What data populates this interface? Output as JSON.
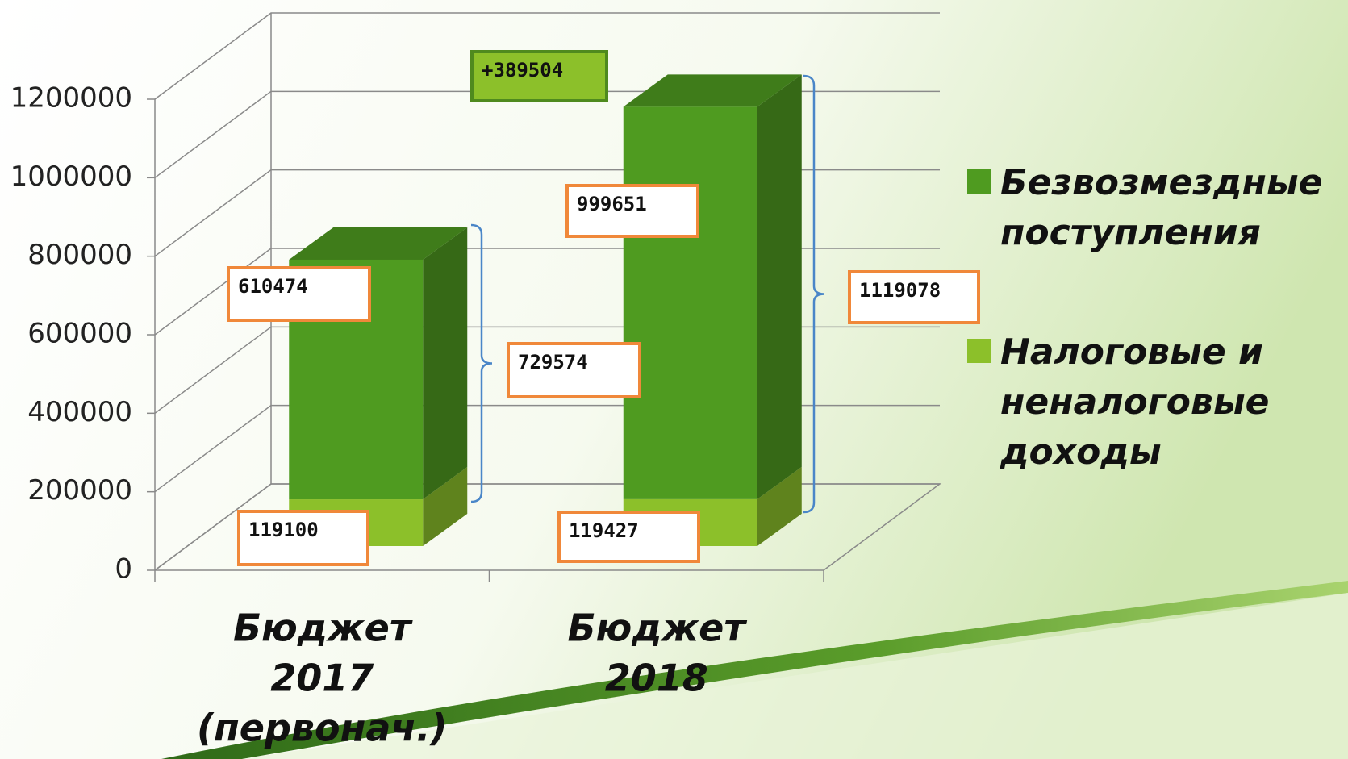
{
  "chart_data": {
    "type": "bar3d_stacked",
    "categories": [
      [
        "Бюджет",
        "2017",
        "(первонач.)"
      ],
      [
        "Бюджет",
        "2018"
      ]
    ],
    "series": [
      {
        "name": "Налоговые и неналоговые доходы",
        "color": "#8cc02a",
        "values": [
          119100,
          119427
        ]
      },
      {
        "name": "Безвозмездные поступления",
        "color": "#4f9b20",
        "values": [
          610474,
          999651
        ]
      }
    ],
    "totals": [
      729574,
      1119078
    ],
    "difference": {
      "value": 389504,
      "label": "+389504"
    },
    "ylim": [
      0,
      1200000
    ],
    "yticks": [
      0,
      200000,
      400000,
      600000,
      800000,
      1000000,
      1200000
    ],
    "grid": true
  }
}
